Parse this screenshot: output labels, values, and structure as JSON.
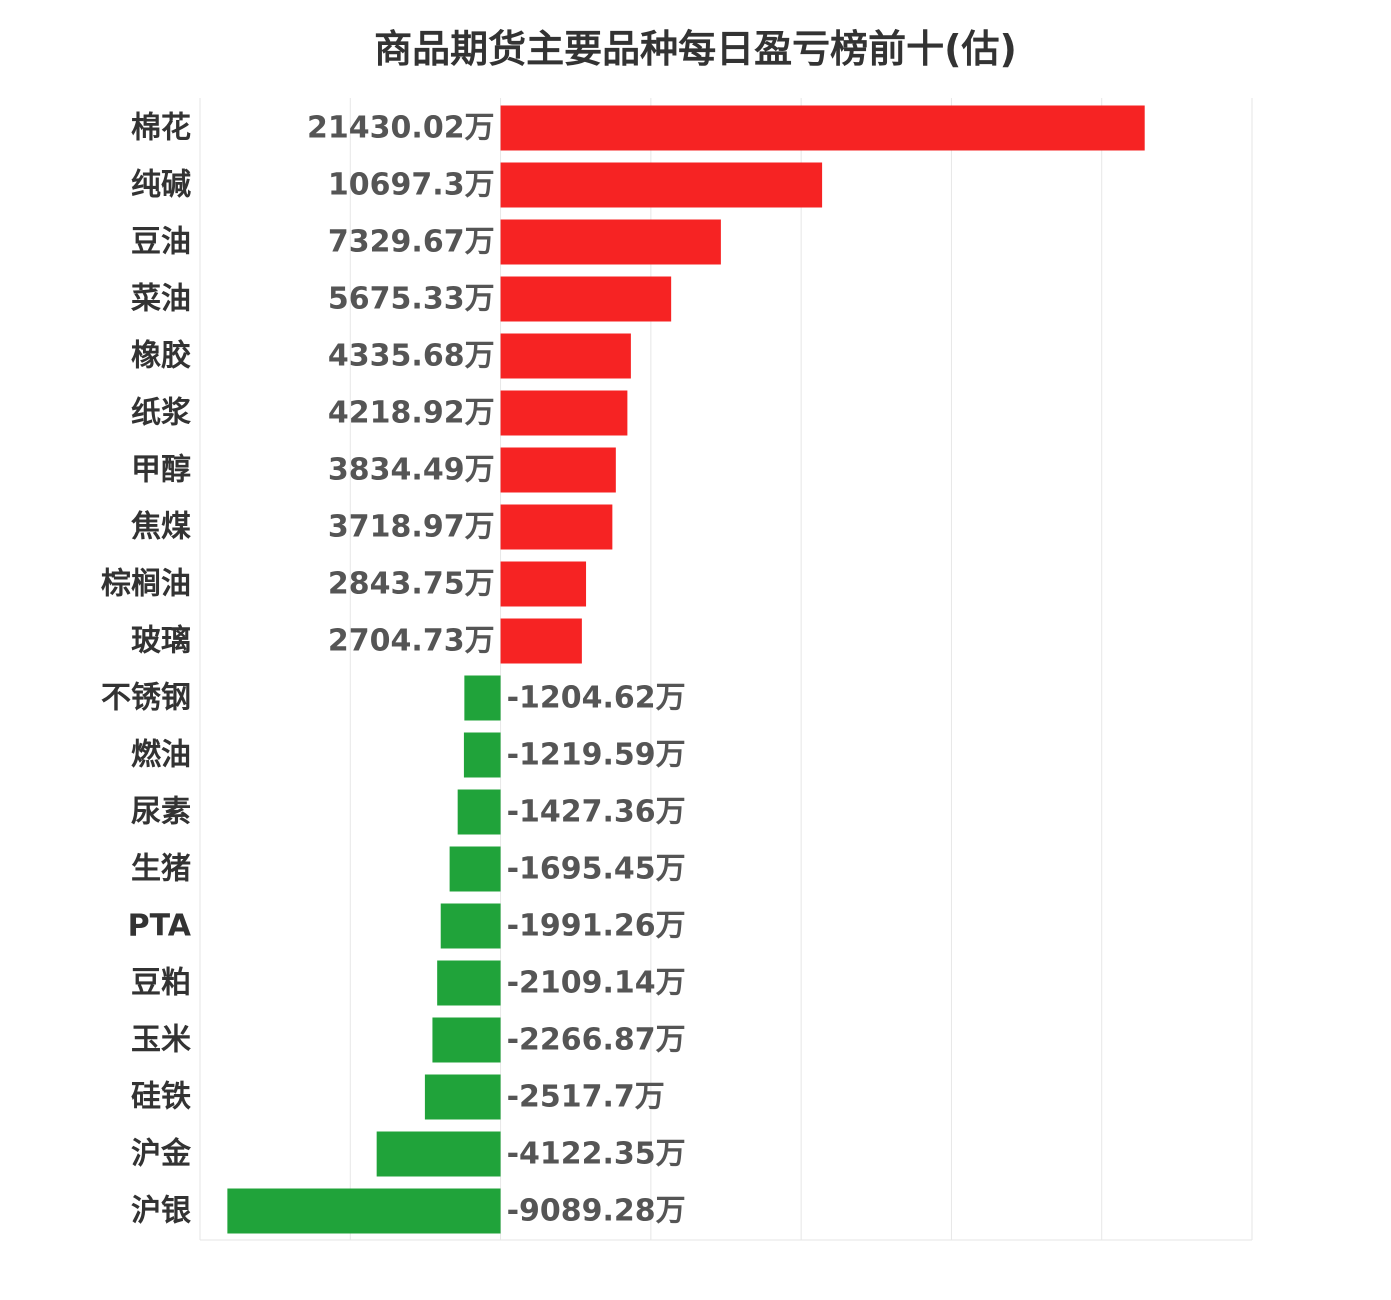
{
  "chart_data": {
    "type": "bar",
    "orientation": "horizontal",
    "title": "商品期货主要品种每日盈亏榜前十(估)",
    "unit": "万",
    "categories": [
      "棉花",
      "纯碱",
      "豆油",
      "菜油",
      "橡胶",
      "纸浆",
      "甲醇",
      "焦煤",
      "棕榈油",
      "玻璃",
      "不锈钢",
      "燃油",
      "尿素",
      "生猪",
      "PTA",
      "豆粕",
      "玉米",
      "硅铁",
      "沪金",
      "沪银"
    ],
    "values": [
      21430.02,
      10697.3,
      7329.67,
      5675.33,
      4335.68,
      4218.92,
      3834.49,
      3718.97,
      2843.75,
      2704.73,
      -1204.62,
      -1219.59,
      -1427.36,
      -1695.45,
      -1991.26,
      -2109.14,
      -2266.87,
      -2517.7,
      -4122.35,
      -9089.28
    ],
    "value_labels": [
      "21430.02万",
      "10697.3万",
      "7329.67万",
      "5675.33万",
      "4335.68万",
      "4218.92万",
      "3834.49万",
      "3718.97万",
      "2843.75万",
      "2704.73万",
      "-1204.62万",
      "-1219.59万",
      "-1427.36万",
      "-1695.45万",
      "-1991.26万",
      "-2109.14万",
      "-2266.87万",
      "-2517.7万",
      "-4122.35万",
      "-9089.28万"
    ],
    "xlim": [
      -10000,
      25000
    ],
    "grid": true,
    "legend": "none",
    "colors": {
      "positive": "#f62323",
      "negative": "#20a33a",
      "grid": "#e6e6e6",
      "label": "#333333",
      "value": "#555555"
    }
  }
}
